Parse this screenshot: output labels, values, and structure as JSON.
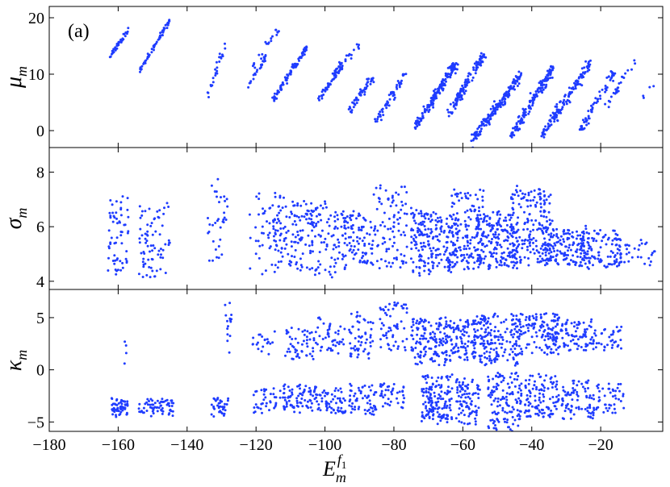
{
  "chart_data": [
    {
      "type": "scatter",
      "panel_label": "(a)",
      "ylabel": "μ",
      "ylabel_sub": "m",
      "ylim": [
        -3,
        22
      ],
      "yticks": [
        0,
        10,
        20
      ],
      "xlim": [
        -180,
        -2
      ],
      "color": "#1f3cff",
      "clusters": [
        {
          "x0": -163,
          "x1": -157,
          "y0": 12.5,
          "y1": 18,
          "n": 40,
          "sx": 0.35,
          "sy": 0.5
        },
        {
          "x0": -154,
          "x1": -145,
          "y0": 10.5,
          "y1": 19.5,
          "n": 55,
          "sx": 0.3,
          "sy": 0.5
        },
        {
          "x0": -134,
          "x1": -129,
          "y0": 6.5,
          "y1": 15,
          "n": 25,
          "sx": 0.5,
          "sy": 0.8
        },
        {
          "x0": -122,
          "x1": -117,
          "y0": 8.5,
          "y1": 13,
          "n": 25,
          "sx": 0.4,
          "sy": 0.7
        },
        {
          "x0": -121,
          "x1": -113,
          "y0": 11,
          "y1": 18.5,
          "n": 20,
          "sx": 0.4,
          "sy": 0.6
        },
        {
          "x0": -115,
          "x1": -105,
          "y0": 5.5,
          "y1": 15,
          "n": 90,
          "sx": 0.4,
          "sy": 0.4
        },
        {
          "x0": -102,
          "x1": -95,
          "y0": 5.5,
          "y1": 11.5,
          "n": 50,
          "sx": 0.5,
          "sy": 0.7
        },
        {
          "x0": -98,
          "x1": -90,
          "y0": 10,
          "y1": 15,
          "n": 25,
          "sx": 0.5,
          "sy": 0.7
        },
        {
          "x0": -93,
          "x1": -86,
          "y0": 3.5,
          "y1": 9.5,
          "n": 50,
          "sx": 0.6,
          "sy": 0.8
        },
        {
          "x0": -85,
          "x1": -77,
          "y0": 1.5,
          "y1": 10,
          "n": 55,
          "sx": 0.6,
          "sy": 0.9
        },
        {
          "x0": -74,
          "x1": -62,
          "y0": 0.5,
          "y1": 12,
          "n": 170,
          "sx": 0.8,
          "sy": 0.8
        },
        {
          "x0": -64,
          "x1": -54,
          "y0": 3,
          "y1": 13.5,
          "n": 110,
          "sx": 0.8,
          "sy": 0.9
        },
        {
          "x0": -57,
          "x1": -43,
          "y0": -1.5,
          "y1": 10,
          "n": 170,
          "sx": 0.8,
          "sy": 0.9
        },
        {
          "x0": -46,
          "x1": -34,
          "y0": -1,
          "y1": 11,
          "n": 150,
          "sx": 0.8,
          "sy": 0.9
        },
        {
          "x0": -37,
          "x1": -23,
          "y0": -1,
          "y1": 12,
          "n": 150,
          "sx": 0.8,
          "sy": 0.9
        },
        {
          "x0": -26,
          "x1": -16,
          "y0": 0,
          "y1": 10.5,
          "n": 70,
          "sx": 0.7,
          "sy": 0.9
        },
        {
          "x0": -18,
          "x1": -10,
          "y0": 4,
          "y1": 13,
          "n": 25,
          "sx": 0.6,
          "sy": 0.8
        },
        {
          "x0": -8,
          "x1": -4,
          "y0": 5.5,
          "y1": 9,
          "n": 4,
          "sx": 0.5,
          "sy": 0.7
        }
      ]
    },
    {
      "type": "scatter",
      "ylabel": "σ",
      "ylabel_sub": "m",
      "ylim": [
        3.7,
        8.9
      ],
      "yticks": [
        4,
        6,
        8
      ],
      "xlim": [
        -180,
        -2
      ],
      "color": "#1f3cff",
      "clusters": [
        {
          "x0": -163,
          "x1": -157,
          "y0": 4.2,
          "y1": 7.1,
          "n": 60,
          "sx": 1.2,
          "sy": 0.2,
          "band": true
        },
        {
          "x0": -154,
          "x1": -145,
          "y0": 4.2,
          "y1": 6.8,
          "n": 75,
          "sx": 2.0,
          "sy": 0.2,
          "band": true
        },
        {
          "x0": -134,
          "x1": -128,
          "y0": 4.6,
          "y1": 7.7,
          "n": 35,
          "sx": 1.0,
          "sy": 0.2,
          "band": true
        },
        {
          "x0": -122,
          "x1": -113,
          "y0": 4.3,
          "y1": 7.2,
          "n": 50,
          "sx": 1.5,
          "sy": 0.2,
          "band": true
        },
        {
          "x0": -115,
          "x1": -104,
          "y0": 4.5,
          "y1": 6.9,
          "n": 110,
          "sx": 2.0,
          "sy": 0.2,
          "band": true
        },
        {
          "x0": -104,
          "x1": -94,
          "y0": 4.2,
          "y1": 6.9,
          "n": 100,
          "sx": 2.0,
          "sy": 0.2,
          "band": true
        },
        {
          "x0": -95,
          "x1": -86,
          "y0": 4.6,
          "y1": 6.5,
          "n": 90,
          "sx": 2.0,
          "sy": 0.2,
          "band": true
        },
        {
          "x0": -86,
          "x1": -76,
          "y0": 4.5,
          "y1": 7.5,
          "n": 90,
          "sx": 2.0,
          "sy": 0.2,
          "band": true
        },
        {
          "x0": -75,
          "x1": -62,
          "y0": 4.3,
          "y1": 6.6,
          "n": 200,
          "sx": 2.0,
          "sy": 0.2,
          "band": true
        },
        {
          "x0": -64,
          "x1": -54,
          "y0": 4.4,
          "y1": 7.3,
          "n": 150,
          "sx": 2.0,
          "sy": 0.2,
          "band": true
        },
        {
          "x0": -56,
          "x1": -44,
          "y0": 4.5,
          "y1": 6.6,
          "n": 200,
          "sx": 2.0,
          "sy": 0.2,
          "band": true
        },
        {
          "x0": -46,
          "x1": -34,
          "y0": 4.6,
          "y1": 7.4,
          "n": 170,
          "sx": 2.0,
          "sy": 0.2,
          "band": true
        },
        {
          "x0": -37,
          "x1": -23,
          "y0": 4.6,
          "y1": 5.9,
          "n": 160,
          "sx": 2.0,
          "sy": 0.2,
          "band": true
        },
        {
          "x0": -26,
          "x1": -14,
          "y0": 4.6,
          "y1": 5.8,
          "n": 100,
          "sx": 2.0,
          "sy": 0.2,
          "band": true
        },
        {
          "x0": -15,
          "x1": -4,
          "y0": 4.6,
          "y1": 5.4,
          "n": 30,
          "sx": 2.0,
          "sy": 0.2,
          "band": true
        }
      ]
    },
    {
      "type": "scatter",
      "ylabel": "κ",
      "ylabel_sub": "m",
      "ylim": [
        -5.9,
        7.7
      ],
      "yticks": [
        -5,
        0,
        5
      ],
      "xlim": [
        -180,
        -2
      ],
      "color": "#1f3cff",
      "clusters": [
        {
          "x0": -162,
          "x1": -157,
          "y0": -4.5,
          "y1": -2.8,
          "n": 60,
          "sx": 1.0,
          "sy": 0.3,
          "band": true
        },
        {
          "x0": -154,
          "x1": -144,
          "y0": -4.3,
          "y1": -2.8,
          "n": 65,
          "sx": 2.0,
          "sy": 0.3,
          "band": true
        },
        {
          "x0": -133,
          "x1": -128,
          "y0": -4.4,
          "y1": -2.7,
          "n": 35,
          "sx": 1.0,
          "sy": 0.3,
          "band": true
        },
        {
          "x0": -121,
          "x1": -114,
          "y0": -4.5,
          "y1": -1.8,
          "n": 35,
          "sx": 1.0,
          "sy": 0.3,
          "band": true
        },
        {
          "x0": -113,
          "x1": -104,
          "y0": -4.0,
          "y1": -1.5,
          "n": 70,
          "sx": 2.0,
          "sy": 0.3,
          "band": true
        },
        {
          "x0": -104,
          "x1": -94,
          "y0": -4.2,
          "y1": -1.8,
          "n": 70,
          "sx": 2.0,
          "sy": 0.3,
          "band": true
        },
        {
          "x0": -93,
          "x1": -85,
          "y0": -4.3,
          "y1": -1.5,
          "n": 60,
          "sx": 2.0,
          "sy": 0.3,
          "band": true
        },
        {
          "x0": -84,
          "x1": -77,
          "y0": -3.5,
          "y1": -1.3,
          "n": 40,
          "sx": 2.0,
          "sy": 0.3,
          "band": true
        },
        {
          "x0": -72,
          "x1": -63,
          "y0": -5.0,
          "y1": -0.5,
          "n": 150,
          "sx": 2.0,
          "sy": 0.3,
          "band": true
        },
        {
          "x0": -62,
          "x1": -55,
          "y0": -5.2,
          "y1": -0.8,
          "n": 90,
          "sx": 2.0,
          "sy": 0.3,
          "band": true
        },
        {
          "x0": -53,
          "x1": -43,
          "y0": -5.8,
          "y1": -0.3,
          "n": 130,
          "sx": 2.0,
          "sy": 0.3,
          "band": true
        },
        {
          "x0": -42,
          "x1": -33,
          "y0": -4.5,
          "y1": -0.5,
          "n": 100,
          "sx": 2.0,
          "sy": 0.3,
          "band": true
        },
        {
          "x0": -33,
          "x1": -22,
          "y0": -4.8,
          "y1": -1.0,
          "n": 90,
          "sx": 2.0,
          "sy": 0.3,
          "band": true
        },
        {
          "x0": -22,
          "x1": -13,
          "y0": -4.3,
          "y1": -1.3,
          "n": 45,
          "sx": 2.0,
          "sy": 0.3,
          "band": true
        },
        {
          "x0": -160,
          "x1": -157,
          "y0": 0.5,
          "y1": 3.5,
          "n": 4,
          "sx": 0.8,
          "sy": 0.5,
          "band": true
        },
        {
          "x0": -129,
          "x1": -127,
          "y0": 1.5,
          "y1": 7.0,
          "n": 15,
          "sx": 0.5,
          "sy": 0.3,
          "band": true
        },
        {
          "x0": -121,
          "x1": -114,
          "y0": 1.5,
          "y1": 3.5,
          "n": 20,
          "sx": 1.0,
          "sy": 0.3,
          "band": true
        },
        {
          "x0": -112,
          "x1": -103,
          "y0": 1.0,
          "y1": 4.0,
          "n": 50,
          "sx": 1.5,
          "sy": 0.3,
          "band": true
        },
        {
          "x0": -103,
          "x1": -94,
          "y0": 1.5,
          "y1": 5.0,
          "n": 45,
          "sx": 1.5,
          "sy": 0.3,
          "band": true
        },
        {
          "x0": -93,
          "x1": -86,
          "y0": 1.0,
          "y1": 5.5,
          "n": 55,
          "sx": 1.5,
          "sy": 0.3,
          "band": true
        },
        {
          "x0": -84,
          "x1": -76,
          "y0": 2.0,
          "y1": 6.5,
          "n": 60,
          "sx": 1.5,
          "sy": 0.3,
          "band": true
        },
        {
          "x0": -75,
          "x1": -63,
          "y0": 0.5,
          "y1": 5.0,
          "n": 160,
          "sx": 1.5,
          "sy": 0.3,
          "band": true
        },
        {
          "x0": -63,
          "x1": -54,
          "y0": 1.0,
          "y1": 5.0,
          "n": 110,
          "sx": 1.5,
          "sy": 0.3,
          "band": true
        },
        {
          "x0": -55,
          "x1": -44,
          "y0": 0.5,
          "y1": 5.2,
          "n": 140,
          "sx": 1.5,
          "sy": 0.3,
          "band": true
        },
        {
          "x0": -44,
          "x1": -32,
          "y0": 1.5,
          "y1": 5.5,
          "n": 130,
          "sx": 1.5,
          "sy": 0.3,
          "band": true
        },
        {
          "x0": -34,
          "x1": -22,
          "y0": 1.8,
          "y1": 4.8,
          "n": 90,
          "sx": 1.5,
          "sy": 0.3,
          "band": true
        },
        {
          "x0": -22,
          "x1": -14,
          "y0": 2.0,
          "y1": 4.0,
          "n": 35,
          "sx": 1.5,
          "sy": 0.3,
          "band": true
        }
      ]
    }
  ],
  "x_axis": {
    "label": "E",
    "label_sub": "m",
    "label_sup": "f",
    "label_sup_sub": "1",
    "ticks": [
      "−180",
      "−160",
      "−140",
      "−120",
      "−100",
      "−80",
      "−60",
      "−40",
      "−20"
    ],
    "tick_values": [
      -180,
      -160,
      -140,
      -120,
      -100,
      -80,
      -60,
      -40,
      -20
    ]
  }
}
